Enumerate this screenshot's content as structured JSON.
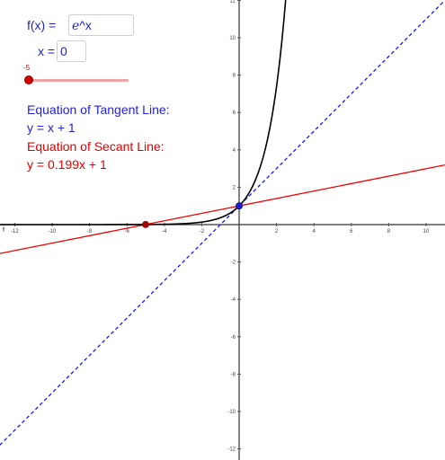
{
  "inputs": {
    "fx_label": "f(x) =",
    "fx_base": "e",
    "fx_rest": "^x",
    "x_label": "x =",
    "x_value": "0"
  },
  "slider": {
    "value_label": "-5",
    "value": -5,
    "min": -5
  },
  "equations": {
    "tangent_title": "Equation of Tangent Line:",
    "tangent_eq": "y = x + 1",
    "secant_title": "Equation of Secant Line:",
    "secant_eq": "y = 0.199x + 1"
  },
  "graph": {
    "x_axis_label": "f",
    "x_ticks": [
      "-12",
      "-10",
      "-8",
      "-6",
      "-4",
      "-2",
      "2",
      "4",
      "6",
      "8",
      "10"
    ],
    "y_ticks_pos": [
      "2",
      "4",
      "6",
      "8",
      "10",
      "12"
    ],
    "y_ticks_neg": [
      "-2",
      "-4",
      "-6",
      "-8",
      "-10",
      "-12"
    ],
    "x_range": [
      -12.6,
      10.9
    ],
    "y_range": [
      -12.5,
      12
    ],
    "function": "e^x",
    "tangent": {
      "slope": 1,
      "intercept": 1
    },
    "secant": {
      "slope": 0.199,
      "intercept": 1
    },
    "point_secant": {
      "x": -5,
      "y": 0.0067
    },
    "point_tangent": {
      "x": 0,
      "y": 1
    },
    "colors": {
      "curve": "#000000",
      "tangent": "#1a1aee",
      "secant": "#ee0000",
      "point_secant": "#b30000",
      "point_tangent": "#1a1add",
      "axis": "#333333"
    }
  }
}
